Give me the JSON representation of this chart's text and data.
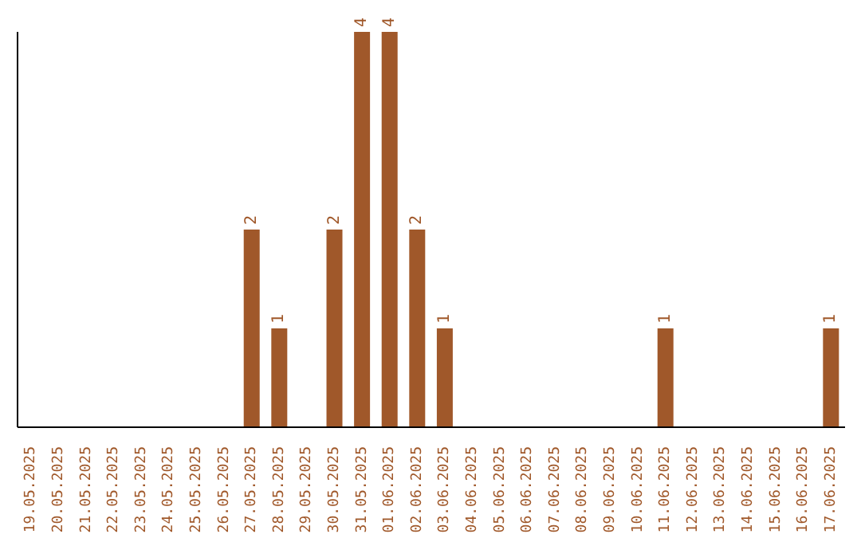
{
  "chart_data": {
    "type": "bar",
    "categories": [
      "19.05.2025",
      "20.05.2025",
      "21.05.2025",
      "22.05.2025",
      "23.05.2025",
      "24.05.2025",
      "25.05.2025",
      "26.05.2025",
      "27.05.2025",
      "28.05.2025",
      "29.05.2025",
      "30.05.2025",
      "31.05.2025",
      "01.06.2025",
      "02.06.2025",
      "03.06.2025",
      "04.06.2025",
      "05.06.2025",
      "06.06.2025",
      "07.06.2025",
      "08.06.2025",
      "09.06.2025",
      "10.06.2025",
      "11.06.2025",
      "12.06.2025",
      "13.06.2025",
      "14.06.2025",
      "15.06.2025",
      "16.06.2025",
      "17.06.2025"
    ],
    "values": [
      0,
      0,
      0,
      0,
      0,
      0,
      0,
      0,
      2,
      1,
      0,
      2,
      4,
      4,
      2,
      1,
      0,
      0,
      0,
      0,
      0,
      0,
      0,
      1,
      0,
      0,
      0,
      0,
      0,
      1
    ],
    "value_labels": [
      null,
      null,
      null,
      null,
      null,
      null,
      null,
      null,
      "2",
      "1",
      null,
      "2",
      "4",
      "4",
      "2",
      "1",
      null,
      null,
      null,
      null,
      null,
      null,
      null,
      "1",
      null,
      null,
      null,
      null,
      null,
      "1"
    ],
    "color": "#a0582a",
    "grid": false,
    "legend": false
  }
}
